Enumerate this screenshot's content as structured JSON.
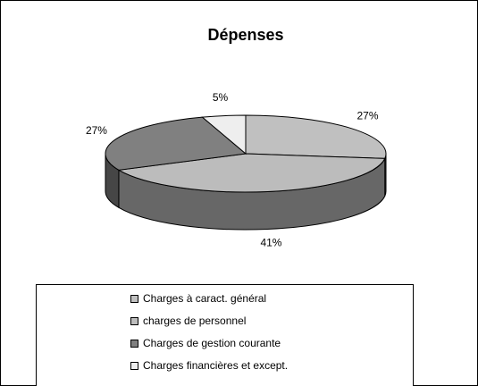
{
  "chart_data": {
    "type": "pie3d",
    "title": "Dépenses",
    "categories": [
      "Charges à caract. général",
      "charges de personnel",
      "Charges de gestion courante",
      "Charges financières et except."
    ],
    "values": [
      27,
      41,
      27,
      5
    ],
    "value_labels": [
      "27%",
      "41%",
      "27%",
      "5%"
    ],
    "colors": [
      "#c0c0c0",
      "#bcbcbc",
      "#808080",
      "#eeeeee"
    ],
    "legend": "bottom"
  }
}
